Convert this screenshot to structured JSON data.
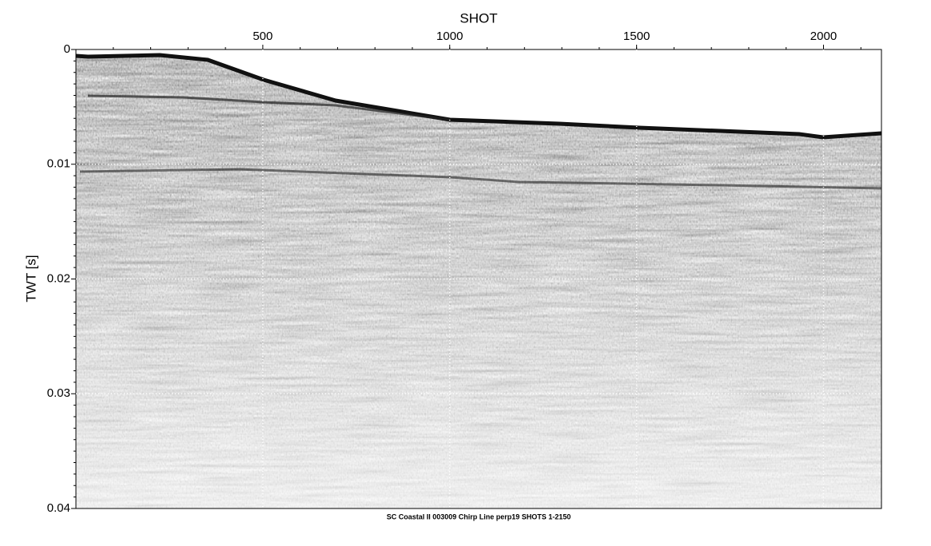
{
  "chart_data": {
    "type": "seismic-section",
    "xlabel": "SHOT",
    "ylabel": "TWT [s]",
    "caption": "SC Coastal II 003009 Chirp Line perp19 SHOTS 1-2150",
    "xlim": [
      0,
      2155
    ],
    "xticks": [
      500,
      1000,
      1500,
      2000
    ],
    "ylim": [
      0,
      0.04
    ],
    "yticks": [
      0,
      0.01,
      0.02,
      0.03,
      0.04
    ],
    "y_inverted": true,
    "grid": true,
    "minor_ticks": true
  }
}
